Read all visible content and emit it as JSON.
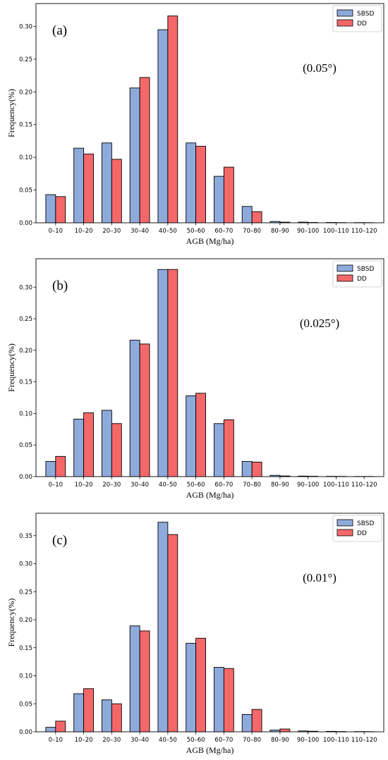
{
  "legend_entries": [
    "SBSD",
    "DD"
  ],
  "colors": {
    "SBSD": "#8eaadb",
    "DD": "#f4686a"
  },
  "chart_data": [
    {
      "type": "bar",
      "panel_label": "(a)",
      "annotation": "(0.05°)",
      "xlabel": "AGB (Mg/ha)",
      "ylabel": "Frequency(%)",
      "categories": [
        "0–10",
        "10–20",
        "20–30",
        "30–40",
        "40–50",
        "50–60",
        "60–70",
        "70–80",
        "80–90",
        "90–100",
        "100–110",
        "110–120"
      ],
      "series": [
        {
          "name": "SBSD",
          "values": [
            0.043,
            0.114,
            0.122,
            0.206,
            0.295,
            0.122,
            0.071,
            0.025,
            0.002,
            0.001,
            0.0005,
            0.0003
          ]
        },
        {
          "name": "DD",
          "values": [
            0.04,
            0.105,
            0.097,
            0.222,
            0.316,
            0.117,
            0.085,
            0.017,
            0.001,
            0.0005,
            0.0003,
            0.0002
          ]
        }
      ],
      "ylim": [
        0,
        0.335
      ],
      "yticks": [
        0.0,
        0.05,
        0.1,
        0.15,
        0.2,
        0.25,
        0.3
      ],
      "ytick_labels": [
        "0.00",
        "0.05",
        "0.10",
        "0.15",
        "0.20",
        "0.25",
        "0.30"
      ],
      "legend_position": "top-right",
      "grid": false
    },
    {
      "type": "bar",
      "panel_label": "(b)",
      "annotation": "(0.025°)",
      "xlabel": "AGB (Mg/ha)",
      "ylabel": "Frequency(%)",
      "categories": [
        "0–10",
        "10–20",
        "20–30",
        "30–40",
        "40–50",
        "50–60",
        "60–70",
        "70–80",
        "80–90",
        "90–100",
        "100–110",
        "110–120"
      ],
      "series": [
        {
          "name": "SBSD",
          "values": [
            0.024,
            0.091,
            0.105,
            0.216,
            0.328,
            0.128,
            0.084,
            0.024,
            0.002,
            0.0008,
            0.0004,
            0.0002
          ]
        },
        {
          "name": "DD",
          "values": [
            0.032,
            0.101,
            0.084,
            0.21,
            0.328,
            0.132,
            0.09,
            0.023,
            0.001,
            0.0005,
            0.0003,
            0.0002
          ]
        }
      ],
      "ylim": [
        0,
        0.345
      ],
      "yticks": [
        0.0,
        0.05,
        0.1,
        0.15,
        0.2,
        0.25,
        0.3
      ],
      "ytick_labels": [
        "0.00",
        "0.05",
        "0.10",
        "0.15",
        "0.20",
        "0.25",
        "0.30"
      ],
      "legend_position": "top-right",
      "grid": false
    },
    {
      "type": "bar",
      "panel_label": "(c)",
      "annotation": "(0.01°)",
      "xlabel": "AGB (Mg/ha)",
      "ylabel": "Frequency(%)",
      "categories": [
        "0–10",
        "10–20",
        "20–30",
        "30–40",
        "40–50",
        "50–60",
        "60–70",
        "70–80",
        "80–90",
        "90–100",
        "100–110",
        "110–120"
      ],
      "series": [
        {
          "name": "SBSD",
          "values": [
            0.008,
            0.068,
            0.057,
            0.189,
            0.374,
            0.158,
            0.115,
            0.031,
            0.003,
            0.0015,
            0.0008,
            0.0004
          ]
        },
        {
          "name": "DD",
          "values": [
            0.019,
            0.077,
            0.05,
            0.18,
            0.352,
            0.167,
            0.113,
            0.04,
            0.005,
            0.001,
            0.0005,
            0.0003
          ]
        }
      ],
      "ylim": [
        0,
        0.39
      ],
      "yticks": [
        0.0,
        0.05,
        0.1,
        0.15,
        0.2,
        0.25,
        0.3,
        0.35
      ],
      "ytick_labels": [
        "0.00",
        "0.05",
        "0.10",
        "0.15",
        "0.20",
        "0.25",
        "0.30",
        "0.35"
      ],
      "legend_position": "top-right",
      "grid": false
    }
  ]
}
